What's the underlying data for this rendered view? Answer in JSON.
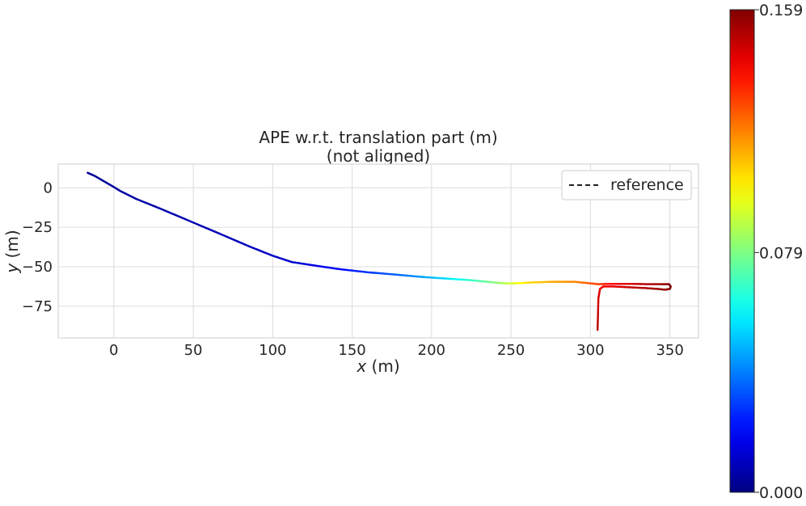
{
  "chart_data": {
    "type": "line",
    "title": "APE w.r.t. translation part (m)",
    "subtitle": "(not aligned)",
    "xlabel_var": "x",
    "xlabel_unit": " (m)",
    "ylabel_var": "y",
    "ylabel_unit": " (m)",
    "xlim": [
      -35,
      368
    ],
    "ylim": [
      -95,
      15
    ],
    "x_ticks": [
      0,
      50,
      100,
      150,
      200,
      250,
      300,
      350
    ],
    "x_tick_labels": [
      "0",
      "50",
      "100",
      "150",
      "200",
      "250",
      "300",
      "350"
    ],
    "y_ticks": [
      0,
      -25,
      -50,
      -75
    ],
    "y_tick_labels": [
      "0",
      "−25",
      "−50",
      "−75"
    ],
    "grid": true,
    "legend": {
      "position": "top-right",
      "entries": [
        {
          "label": "reference",
          "style": "dashed",
          "color": "#222222"
        }
      ]
    },
    "colormap": "jet",
    "colorbar": {
      "min": 0.0,
      "max": 0.159,
      "ticks": [
        0.0,
        0.079,
        0.159
      ],
      "tick_labels": [
        "0.000",
        "0.079",
        "0.159"
      ]
    },
    "series": [
      {
        "name": "reference",
        "x": [
          -16.5,
          -12,
          -6,
          0,
          4,
          14,
          30,
          50,
          70,
          85,
          100,
          112,
          125,
          142,
          160,
          178,
          195,
          210,
          225,
          240,
          246,
          252,
          262,
          275,
          290,
          300,
          305,
          315,
          325,
          335,
          345,
          349.5,
          350.5,
          350,
          347,
          342,
          335,
          325,
          315,
          308,
          306,
          305,
          304.5
        ],
        "y": [
          9.5,
          7.5,
          4,
          0.5,
          -2,
          -7,
          -13.5,
          -22,
          -30.5,
          -37,
          -43,
          -47,
          -49,
          -51.5,
          -53.5,
          -55,
          -56.5,
          -57.5,
          -58.5,
          -60,
          -60.5,
          -60.5,
          -60,
          -59.5,
          -59.5,
          -60.5,
          -61,
          -60.8,
          -60.8,
          -61,
          -61,
          -61,
          -62.5,
          -64,
          -64.5,
          -64,
          -63.5,
          -63,
          -62.5,
          -62.5,
          -64,
          -70,
          -90
        ],
        "error": [
          0.004,
          0.004,
          0.004,
          0.005,
          0.005,
          0.006,
          0.007,
          0.008,
          0.009,
          0.01,
          0.011,
          0.012,
          0.015,
          0.02,
          0.028,
          0.035,
          0.045,
          0.055,
          0.068,
          0.08,
          0.087,
          0.095,
          0.105,
          0.112,
          0.118,
          0.126,
          0.13,
          0.14,
          0.145,
          0.15,
          0.155,
          0.158,
          0.159,
          0.158,
          0.156,
          0.154,
          0.152,
          0.148,
          0.143,
          0.14,
          0.142,
          0.145,
          0.15
        ]
      }
    ]
  }
}
